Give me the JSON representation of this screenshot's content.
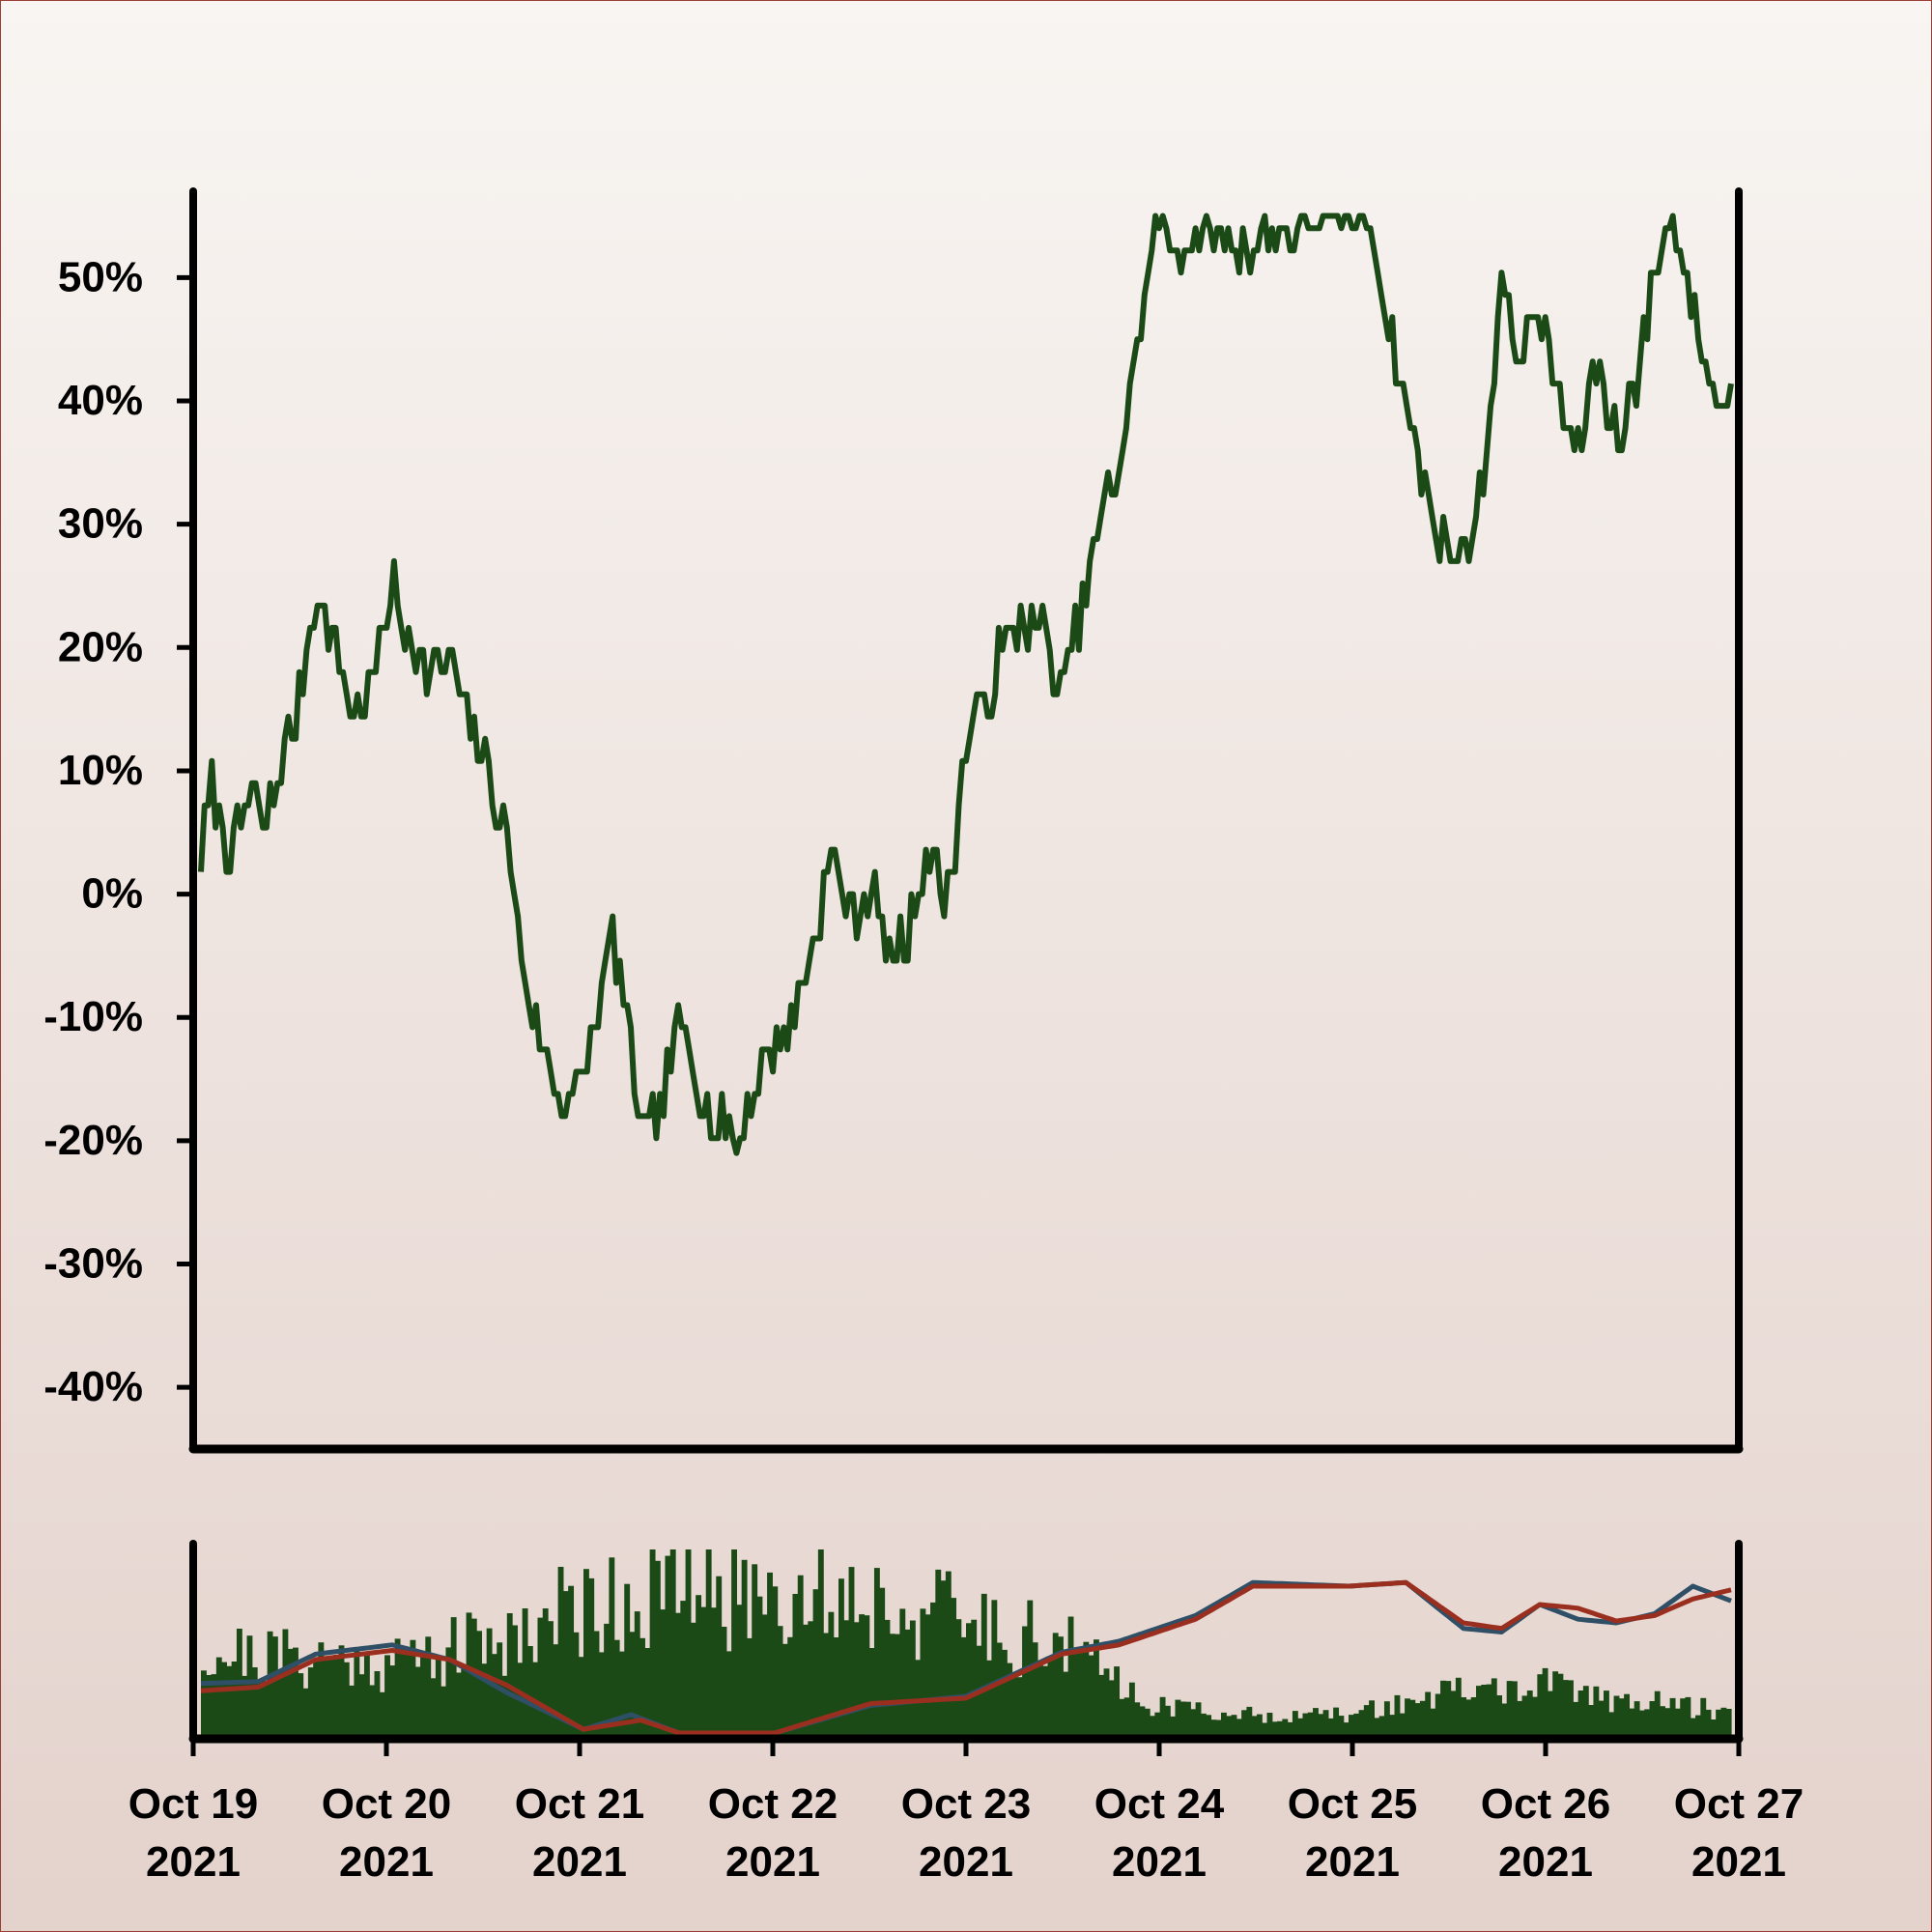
{
  "chart_data": [
    {
      "type": "line",
      "title": "",
      "xlabel": "",
      "ylabel": "",
      "ylim": [
        -45,
        55
      ],
      "yticks": [
        "50%",
        "40%",
        "30%",
        "20%",
        "10%",
        "0%",
        "-10%",
        "-20%",
        "-30%",
        "-40%"
      ],
      "ytick_values": [
        50,
        40,
        30,
        20,
        10,
        0,
        -10,
        -20,
        -30,
        -40
      ],
      "y_unit": "%",
      "xlim": [
        "2021-10-19",
        "2021-10-27"
      ],
      "grid": false,
      "colors": {
        "line": "#1b4a17"
      },
      "series": [
        {
          "x_days": [
            0,
            0.05,
            0.15,
            0.25,
            0.35,
            0.5,
            0.6,
            0.8,
            0.9,
            1.0,
            1.05,
            1.2,
            1.3,
            1.45,
            1.6,
            1.7,
            1.8,
            1.9,
            2.0,
            2.1,
            2.15,
            2.2,
            2.25,
            2.3,
            2.4,
            2.5,
            2.6,
            2.7,
            2.75,
            2.8,
            2.9,
            3.0,
            3.1,
            3.2,
            3.3,
            3.4,
            3.5,
            3.6,
            3.7,
            3.8,
            3.9,
            4.0,
            4.05,
            4.2,
            4.3,
            4.4,
            4.5,
            4.55,
            4.7,
            4.8,
            5.0,
            5.1,
            5.3,
            5.4,
            5.5,
            5.6,
            5.7,
            5.8,
            5.9,
            6.0,
            6.1,
            6.3,
            6.4,
            6.5,
            6.6,
            6.7,
            6.8,
            6.9,
            7.0,
            7.1,
            7.2,
            7.3,
            7.4,
            7.5,
            7.6,
            7.7,
            7.8,
            7.9,
            8.0
          ],
          "values": [
            2,
            9,
            3,
            8,
            6,
            15,
            25,
            14,
            17,
            26,
            22,
            18,
            19,
            12,
            5,
            -8,
            -13,
            -17,
            -15,
            -7,
            -3,
            -8,
            -12,
            -20,
            -18,
            -10,
            -15,
            -20,
            -18,
            -21,
            -15,
            -12,
            -10,
            -4,
            4,
            -2,
            1,
            -5,
            -3,
            4,
            -1,
            12,
            14,
            20,
            23,
            21,
            16,
            20,
            30,
            35,
            55,
            52,
            54,
            52,
            53,
            54,
            53,
            55,
            54,
            55,
            55,
            40,
            33,
            28,
            27,
            33,
            49,
            44,
            47,
            40,
            36,
            43,
            37,
            41,
            50,
            55,
            48,
            40,
            40
          ]
        }
      ]
    },
    {
      "type": "bar",
      "title": "",
      "xlabel": "",
      "ylabel": "",
      "xticks": [
        "Oct 19\n2021",
        "Oct 20\n2021",
        "Oct 21\n2021",
        "Oct 22\n2021",
        "Oct 23\n2021",
        "Oct 24\n2021",
        "Oct 25\n2021",
        "Oct 26\n2021",
        "Oct 27\n2021"
      ],
      "xtick_lines": [
        [
          "Oct 19",
          "2021"
        ],
        [
          "Oct 20",
          "2021"
        ],
        [
          "Oct 21",
          "2021"
        ],
        [
          "Oct 22",
          "2021"
        ],
        [
          "Oct 23",
          "2021"
        ],
        [
          "Oct 24",
          "2021"
        ],
        [
          "Oct 25",
          "2021"
        ],
        [
          "Oct 26",
          "2021"
        ],
        [
          "Oct 27",
          "2021"
        ]
      ],
      "xlim": [
        "2021-10-19",
        "2021-10-27"
      ],
      "ylim": [
        0,
        1
      ],
      "grid": false,
      "colors": {
        "bars": "#1b4a17",
        "fast_line": "#2f4f66",
        "slow_line": "#9a2f1f"
      },
      "bar_profile": {
        "x_days": [
          0,
          0.5,
          1.0,
          1.5,
          2.0,
          2.5,
          3.0,
          3.5,
          4.0,
          4.5,
          5.0,
          5.5,
          6.0,
          6.5,
          7.0,
          7.5,
          8.0
        ],
        "values": [
          0.45,
          0.42,
          0.4,
          0.5,
          0.72,
          0.78,
          0.8,
          0.75,
          0.62,
          0.5,
          0.15,
          0.1,
          0.1,
          0.22,
          0.26,
          0.18,
          0.12
        ]
      },
      "series": [
        {
          "name": "",
          "x_days": [
            0,
            0.3,
            0.6,
            1.0,
            1.3,
            1.6,
            2.0,
            2.25,
            2.5,
            3.0,
            3.5,
            4.0,
            4.5,
            4.8,
            5.2,
            5.5,
            6.0,
            6.3,
            6.6,
            6.8,
            7.0,
            7.2,
            7.4,
            7.6,
            7.8,
            8.0
          ],
          "values": [
            0.27,
            0.28,
            0.43,
            0.48,
            0.4,
            0.22,
            0.02,
            0.1,
            0.0,
            0.0,
            0.15,
            0.2,
            0.44,
            0.5,
            0.64,
            0.82,
            0.8,
            0.82,
            0.57,
            0.55,
            0.7,
            0.62,
            0.6,
            0.65,
            0.8,
            0.72
          ]
        },
        {
          "name": "",
          "x_days": [
            0,
            0.3,
            0.6,
            1.0,
            1.3,
            1.6,
            2.0,
            2.3,
            2.5,
            3.0,
            3.5,
            4.0,
            4.5,
            4.8,
            5.2,
            5.5,
            6.0,
            6.3,
            6.6,
            6.8,
            7.0,
            7.2,
            7.4,
            7.6,
            7.8,
            8.0
          ],
          "values": [
            0.23,
            0.25,
            0.4,
            0.45,
            0.4,
            0.26,
            0.02,
            0.07,
            0.0,
            0.0,
            0.16,
            0.19,
            0.43,
            0.48,
            0.62,
            0.8,
            0.8,
            0.82,
            0.6,
            0.57,
            0.7,
            0.68,
            0.61,
            0.64,
            0.73,
            0.78
          ]
        }
      ]
    }
  ]
}
